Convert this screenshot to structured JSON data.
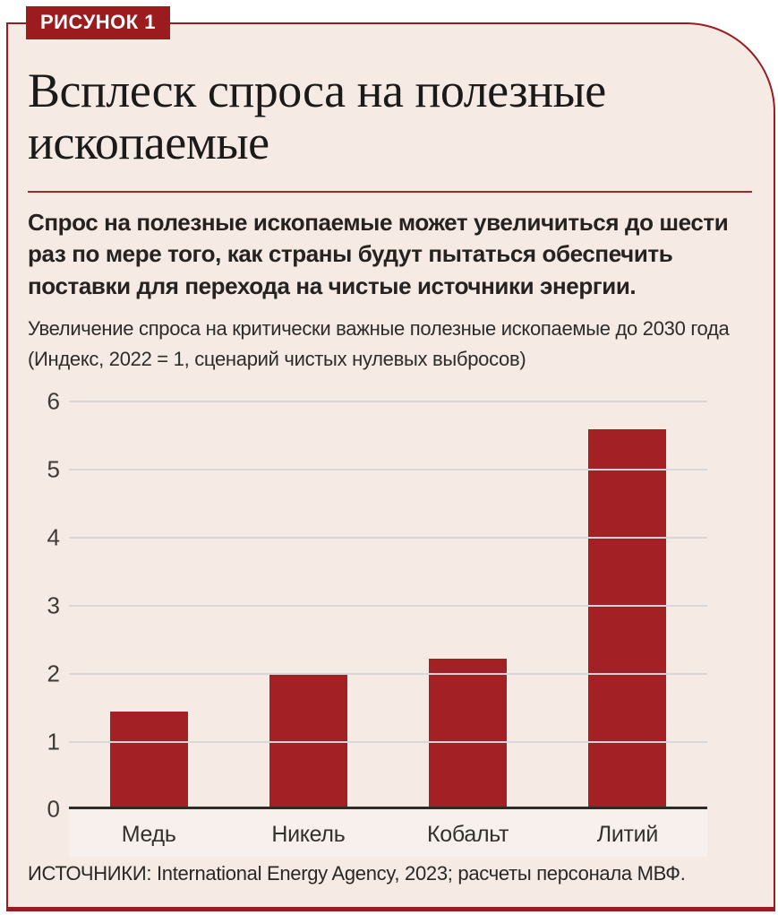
{
  "figure_label": "РИСУНОК 1",
  "title": "Всплеск спроса на полезные ископаемые",
  "subtitle": "Спрос на полезные ископаемые может увеличиться до шести раз по мере того, как страны будут пытаться обеспечить поставки для перехода на чистые источники энергии.",
  "note": {
    "line1": "Увеличение спроса на критически важные полезные ископаемые до 2030 года",
    "line2": "(Индекс, 2022 = 1, сценарий чистых нулевых выбросов)"
  },
  "source": "ИСТОЧНИКИ: International Energy Agency, 2023; расчеты персонала МВФ.",
  "colors": {
    "bar": "#A32024",
    "badge": "#9C1B1F",
    "card_border": "#9B1B1E",
    "card_background": "#F5EAE4",
    "rule": "#9B2D22",
    "gridline": "#D8D7DA",
    "axis_line": "#2F2B29"
  },
  "chart_data": {
    "type": "bar",
    "categories": [
      "Медь",
      "Никель",
      "Кобальт",
      "Литий"
    ],
    "values": [
      1.4,
      1.97,
      2.17,
      5.55
    ],
    "title": "Увеличение спроса на критически важные полезные ископаемые до 2030 года (Индекс, 2022 = 1, сценарий чистых нулевых выбросов)",
    "xlabel": "",
    "ylabel": "Индекс, 2022 = 1",
    "ylim": [
      0,
      6
    ],
    "yticks": [
      0,
      1,
      2,
      3,
      4,
      5,
      6
    ],
    "grid": true,
    "legend": false,
    "bar_color": "#A32024"
  }
}
